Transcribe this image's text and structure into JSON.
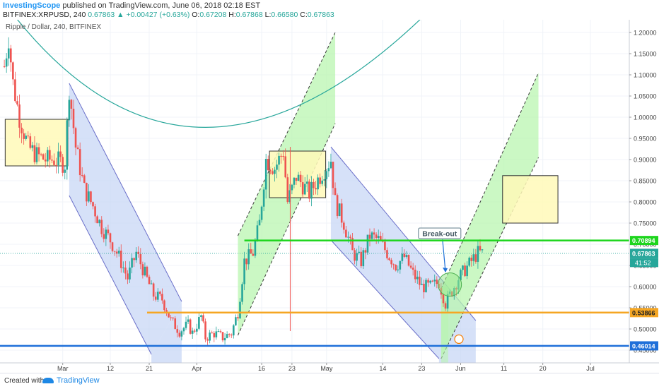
{
  "header": {
    "publisher": "InvestingScope",
    "published_text": "published on TradingView.com, June 06, 2018 02:18 EST",
    "symbol": "BITFINEX:XRPUSD, 240",
    "last": "0.67863",
    "change": "+0.00427 (+0.63%)",
    "o_label": "O:",
    "o_value": "0.67208",
    "h_label": "H:",
    "h_value": "0.67868",
    "l_label": "L:",
    "l_value": "0.66580",
    "c_label": "C:",
    "c_value": "0.67863"
  },
  "chart_title": "Ripple / Dollar, 240, BITFINEX",
  "footer": {
    "created_with": "Created with",
    "brand": "TradingView"
  },
  "colors": {
    "bull": "#26a69a",
    "bear": "#ef5350",
    "channel_blue": "#c8d7f5",
    "channel_green": "#b9f5b0",
    "box_yellow": "#fff9b8",
    "level_green": "#1dd51d",
    "level_orange": "#f5a623",
    "level_blue": "#1e6fd9",
    "curve": "#26a69a"
  },
  "chart_data": {
    "type": "candlestick",
    "symbol": "XRPUSD",
    "timeframe": "240",
    "x_ticks": [
      {
        "label": "Mar",
        "day": 31
      },
      {
        "label": "12",
        "day": 42
      },
      {
        "label": "21",
        "day": 51
      },
      {
        "label": "Apr",
        "day": 62
      },
      {
        "label": "16",
        "day": 77
      },
      {
        "label": "23",
        "day": 84
      },
      {
        "label": "May",
        "day": 92
      },
      {
        "label": "14",
        "day": 105
      },
      {
        "label": "23",
        "day": 114
      },
      {
        "label": "Jun",
        "day": 123
      },
      {
        "label": "11",
        "day": 133
      },
      {
        "label": "20",
        "day": 142
      },
      {
        "label": "Jul",
        "day": 153
      }
    ],
    "y_ticks": [
      "1.20000",
      "1.15000",
      "1.10000",
      "1.05000",
      "1.00000",
      "0.95000",
      "0.90000",
      "0.85000",
      "0.80000",
      "0.75000",
      "0.70000",
      "0.65000",
      "0.60000",
      "0.55000",
      "0.50000",
      "0.45000"
    ],
    "ylim": [
      0.42,
      1.23
    ],
    "xlim": [
      16.5,
      162
    ],
    "price_path": [
      [
        17.5,
        1.12
      ],
      [
        18.5,
        1.19
      ],
      [
        19.5,
        1.08
      ],
      [
        21,
        1.0
      ],
      [
        23,
        0.93
      ],
      [
        25,
        0.91
      ],
      [
        27,
        0.9
      ],
      [
        29,
        0.9
      ],
      [
        31.5,
        0.89
      ],
      [
        32.5,
        1.07
      ],
      [
        34,
        0.93
      ],
      [
        36,
        0.83
      ],
      [
        38,
        0.79
      ],
      [
        40,
        0.74
      ],
      [
        42,
        0.71
      ],
      [
        44,
        0.67
      ],
      [
        46,
        0.62
      ],
      [
        48,
        0.68
      ],
      [
        50,
        0.63
      ],
      [
        52,
        0.58
      ],
      [
        54,
        0.57
      ],
      [
        56,
        0.52
      ],
      [
        58,
        0.495
      ],
      [
        60,
        0.51
      ],
      [
        61,
        0.49
      ],
      [
        63,
        0.53
      ],
      [
        64,
        0.48
      ],
      [
        66,
        0.49
      ],
      [
        68,
        0.48
      ],
      [
        70,
        0.49
      ],
      [
        71.5,
        0.54
      ],
      [
        73,
        0.66
      ],
      [
        75,
        0.68
      ],
      [
        76.5,
        0.75
      ],
      [
        78,
        0.9
      ],
      [
        80,
        0.88
      ],
      [
        82,
        0.92
      ],
      [
        83,
        0.8
      ],
      [
        85,
        0.86
      ],
      [
        88,
        0.82
      ],
      [
        91,
        0.87
      ],
      [
        93,
        0.9
      ],
      [
        94,
        0.8
      ],
      [
        96,
        0.75
      ],
      [
        98,
        0.68
      ],
      [
        100,
        0.66
      ],
      [
        102,
        0.72
      ],
      [
        104,
        0.71
      ],
      [
        106,
        0.68
      ],
      [
        108,
        0.65
      ],
      [
        110,
        0.67
      ],
      [
        112,
        0.63
      ],
      [
        114,
        0.6
      ],
      [
        116,
        0.6
      ],
      [
        118,
        0.61
      ],
      [
        119.5,
        0.56
      ],
      [
        121,
        0.59
      ],
      [
        122.5,
        0.62
      ],
      [
        124,
        0.64
      ],
      [
        125.5,
        0.66
      ],
      [
        127,
        0.68
      ],
      [
        128,
        0.67863
      ]
    ],
    "bars_per_day": 2,
    "spikes": [
      {
        "day": 83.6,
        "low": 0.495,
        "high": 0.93
      }
    ],
    "levels": [
      {
        "price": 0.70894,
        "label": "0.70894",
        "color": "#1dd51d",
        "from_day": 73
      },
      {
        "price": 0.53866,
        "label": "0.53866",
        "color": "#f5a623",
        "from_day": 50.5
      },
      {
        "price": 0.46014,
        "label": "0.46014",
        "color": "#1e6fd9",
        "from_day": 16.5
      }
    ],
    "last_price": {
      "price": 0.67863,
      "label": "0.67863",
      "countdown": "41:52"
    },
    "boxes": [
      {
        "d1": 17.7,
        "d2": 32.2,
        "p1": 0.885,
        "p2": 0.995
      },
      {
        "d1": 78.8,
        "d2": 91.8,
        "p1": 0.81,
        "p2": 0.92
      },
      {
        "d1": 132.7,
        "d2": 145.5,
        "p1": 0.75,
        "p2": 0.862
      }
    ],
    "channels": [
      {
        "color": "blue",
        "upper": [
          [
            32.5,
            1.08
          ],
          [
            58.5,
            0.565
          ]
        ],
        "lower": [
          [
            32.5,
            0.815
          ],
          [
            51.5,
            0.44
          ]
        ],
        "base": 0.42
      },
      {
        "color": "green",
        "upper": [
          [
            71.5,
            0.72
          ],
          [
            94,
            1.2
          ]
        ],
        "lower": [
          [
            71.5,
            0.485
          ],
          [
            94,
            0.985
          ]
        ],
        "base": null
      },
      {
        "color": "blue",
        "upper": [
          [
            93,
            0.93
          ],
          [
            126.5,
            0.52
          ]
        ],
        "lower": [
          [
            93,
            0.71
          ],
          [
            118,
            0.43
          ]
        ],
        "base": 0.42
      },
      {
        "color": "green",
        "upper": [
          [
            118.5,
            0.595
          ],
          [
            141,
            1.105
          ]
        ],
        "lower": [
          [
            118.5,
            0.43
          ],
          [
            141,
            0.905
          ]
        ],
        "base": 0.43
      }
    ],
    "curve": [
      [
        19,
        1.25
      ],
      [
        64,
        0.976
      ],
      [
        115.6,
        1.25
      ]
    ],
    "annotations": [
      {
        "text": "Break-out",
        "day": 117.5,
        "price": 0.725,
        "arrow_to": [
          119.5,
          0.635
        ]
      }
    ],
    "highlight_circle": {
      "day": 120.5,
      "price": 0.605,
      "radius_days": 2.7
    }
  }
}
